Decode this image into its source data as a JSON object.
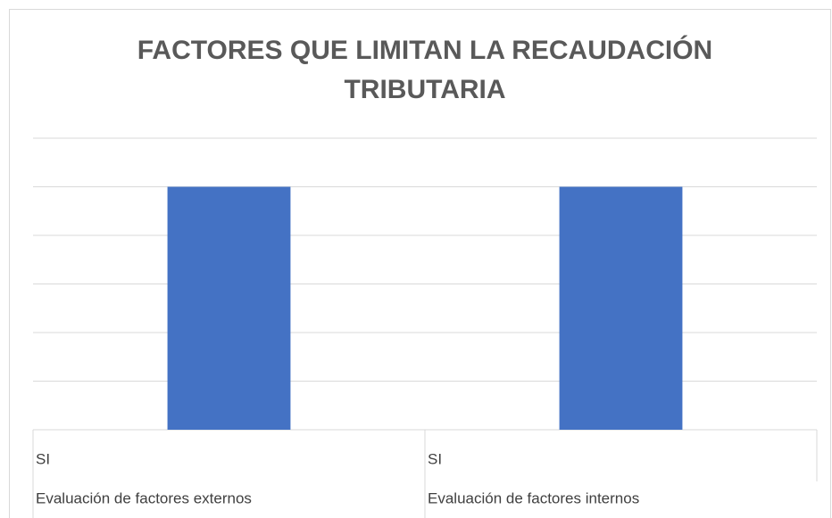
{
  "chart_data": {
    "type": "bar",
    "title": [
      "FACTORES QUE LIMITAN LA RECAUDACIÓN",
      "TRIBUTARIA"
    ],
    "categories": [
      "SI",
      "SI"
    ],
    "category_groups": [
      "Evaluación de factores externos",
      "Evaluación de factores internos"
    ],
    "values": [
      5,
      5
    ],
    "color": "#4472c4",
    "ylim": [
      0,
      6
    ],
    "yticks": [
      0,
      1,
      2,
      3,
      4,
      5,
      6
    ],
    "grid": true
  }
}
